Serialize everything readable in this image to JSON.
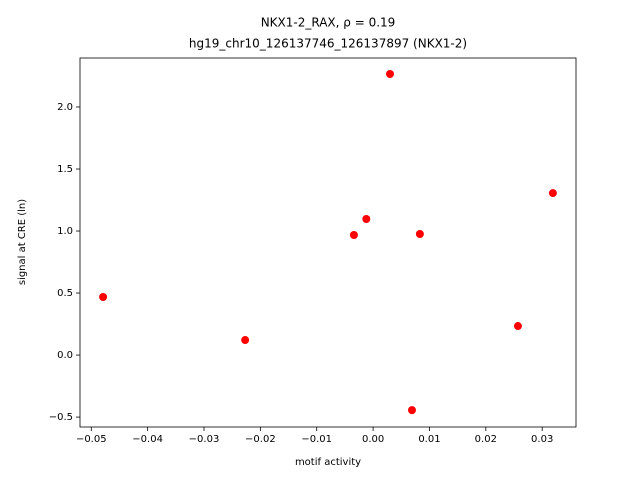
{
  "chart_data": {
    "type": "scatter",
    "title": "NKX1-2_RAX, ρ = 0.19",
    "subtitle": "hg19_chr10_126137746_126137897 (NKX1-2)",
    "x_label": "motif activity",
    "y_label": "signal at CRE (ln)",
    "color": "#ff0000",
    "x": [
      -0.0479,
      -0.0227,
      -0.0034,
      -0.0012,
      0.003,
      0.0083,
      0.0069,
      0.0257,
      0.0319
    ],
    "values": [
      0.468,
      0.121,
      0.968,
      1.097,
      2.266,
      0.976,
      -0.444,
      0.234,
      1.306
    ],
    "xlim": [
      -0.052,
      0.036
    ],
    "ylim": [
      -0.58,
      2.395
    ],
    "xticks": [
      {
        "value": -0.05,
        "label": "−0.05"
      },
      {
        "value": -0.04,
        "label": "−0.04"
      },
      {
        "value": -0.03,
        "label": "−0.03"
      },
      {
        "value": -0.02,
        "label": "−0.02"
      },
      {
        "value": -0.01,
        "label": "−0.01"
      },
      {
        "value": 0,
        "label": "0.00"
      },
      0.01,
      0.02,
      0.03
    ],
    "yticks": [
      {
        "value": -0.5,
        "label": "−0.5"
      },
      {
        "value": 0,
        "label": "0.0"
      },
      0.5,
      {
        "value": 1,
        "label": "1.0"
      },
      1.5,
      {
        "value": 2,
        "label": "2.0"
      }
    ]
  }
}
